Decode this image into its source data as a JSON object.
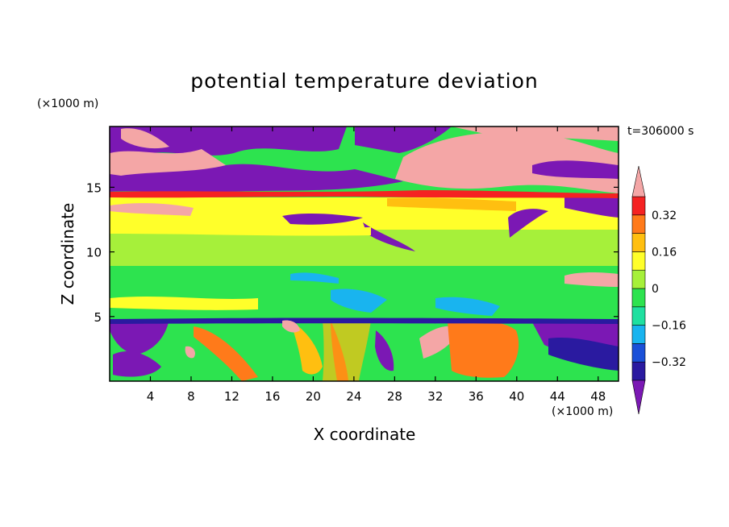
{
  "chart_data": {
    "type": "heatmap",
    "title": "potential temperature deviation",
    "xlabel": "X coordinate",
    "ylabel": "Z coordinate",
    "x_unit": "(×1000 m)",
    "y_unit": "(×1000 m)",
    "time_label": "t=306000 s",
    "xlim": [
      0,
      50
    ],
    "ylim": [
      0,
      19.7
    ],
    "x_ticks": [
      4,
      8,
      12,
      16,
      20,
      24,
      28,
      32,
      36,
      40,
      44,
      48
    ],
    "y_ticks": [
      5,
      10,
      15
    ],
    "colorbar": {
      "levels": [
        -0.4,
        -0.32,
        -0.24,
        -0.16,
        -0.08,
        0,
        0.08,
        0.16,
        0.24,
        0.32,
        0.4
      ],
      "tick_labels": [
        "0.32",
        "0.16",
        "0",
        "−0.16",
        "−0.32"
      ],
      "tick_values": [
        0.32,
        0.16,
        0,
        -0.16,
        -0.32
      ],
      "colors": [
        "#7b18b4",
        "#2a1aa0",
        "#1a50d8",
        "#19b4ef",
        "#1fe0a0",
        "#2de34f",
        "#a6f03a",
        "#ffff2a",
        "#ffbf10",
        "#ff7a1a",
        "#f52222",
        "#f4a6a6"
      ],
      "extend": "both"
    },
    "field_layers": [
      {
        "z_range": [
          15.5,
          19.7
        ],
        "description": "alternating strong negative (purple) and strong positive (pink) patches"
      },
      {
        "z_range": [
          13.5,
          15.5
        ],
        "description": "mixed bands, mostly green with red/purple speckles"
      },
      {
        "z_range": [
          11.5,
          13.5
        ],
        "description": "yellow-orange positive band with purple cells"
      },
      {
        "z_range": [
          5,
          11.5
        ],
        "description": "green near-zero field with cyan/yellow streaks"
      },
      {
        "z_range": [
          0,
          5
        ],
        "description": "convective plumes: red/orange updrafts and purple/blue cold pools"
      }
    ]
  }
}
